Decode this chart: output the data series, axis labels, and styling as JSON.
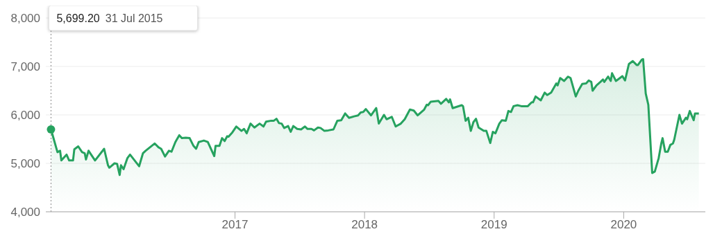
{
  "chart_data": {
    "type": "area",
    "color": "#26a25f",
    "x": [
      2015.58,
      2015.63,
      2015.65,
      2015.66,
      2015.7,
      2015.72,
      2015.75,
      2015.76,
      2015.79,
      2015.82,
      2015.84,
      2015.85,
      2015.87,
      2015.92,
      2015.99,
      2016.02,
      2016.03,
      2016.07,
      2016.09,
      2016.11,
      2016.12,
      2016.14,
      2016.17,
      2016.19,
      2016.26,
      2016.29,
      2016.31,
      2016.38,
      2016.41,
      2016.43,
      2016.46,
      2016.49,
      2016.51,
      2016.54,
      2016.57,
      2016.59,
      2016.62,
      2016.65,
      2016.68,
      2016.7,
      2016.72,
      2016.76,
      2016.79,
      2016.84,
      2016.85,
      2016.88,
      2016.9,
      2016.92,
      2016.94,
      2016.95,
      2016.98,
      2017.01,
      2017.05,
      2017.07,
      2017.09,
      2017.12,
      2017.15,
      2017.19,
      2017.22,
      2017.24,
      2017.28,
      2017.3,
      2017.32,
      2017.34,
      2017.36,
      2017.38,
      2017.41,
      2017.43,
      2017.45,
      2017.48,
      2017.51,
      2017.54,
      2017.56,
      2017.59,
      2017.61,
      2017.64,
      2017.66,
      2017.69,
      2017.72,
      2017.76,
      2017.79,
      2017.82,
      2017.85,
      2017.88,
      2017.92,
      2017.95,
      2017.97,
      2017.99,
      2018.01,
      2018.05,
      2018.09,
      2018.11,
      2018.15,
      2018.17,
      2018.21,
      2018.24,
      2018.28,
      2018.31,
      2018.35,
      2018.38,
      2018.41,
      2018.46,
      2018.48,
      2018.49,
      2018.51,
      2018.57,
      2018.59,
      2018.63,
      2018.65,
      2018.66,
      2018.68,
      2018.75,
      2018.76,
      2018.78,
      2018.8,
      2018.82,
      2018.84,
      2018.86,
      2018.88,
      2018.92,
      2018.94,
      2018.97,
      2018.99,
      2019.01,
      2019.04,
      2019.06,
      2019.09,
      2019.11,
      2019.13,
      2019.15,
      2019.18,
      2019.21,
      2019.23,
      2019.26,
      2019.29,
      2019.3,
      2019.32,
      2019.36,
      2019.39,
      2019.41,
      2019.44,
      2019.48,
      2019.49,
      2019.51,
      2019.54,
      2019.57,
      2019.59,
      2019.63,
      2019.65,
      2019.68,
      2019.71,
      2019.73,
      2019.75,
      2019.76,
      2019.79,
      2019.82,
      2019.84,
      2019.85,
      2019.88,
      2019.9,
      2019.91,
      2019.94,
      2019.96,
      2019.99,
      2020.01,
      2020.04,
      2020.07,
      2020.1,
      2020.11,
      2020.14,
      2020.15,
      2020.17,
      2020.19,
      2020.22,
      2020.24,
      2020.27,
      2020.29,
      2020.3,
      2020.32,
      2020.34,
      2020.36,
      2020.38,
      2020.39,
      2020.43,
      2020.45,
      2020.48,
      2020.49,
      2020.51,
      2020.54,
      2020.55,
      2020.58
    ],
    "values": [
      5700,
      5230,
      5260,
      5060,
      5180,
      5060,
      5060,
      5290,
      5350,
      5230,
      5210,
      5080,
      5260,
      5060,
      5300,
      4960,
      4910,
      5000,
      4990,
      4760,
      4960,
      4880,
      5110,
      5180,
      4940,
      5210,
      5260,
      5410,
      5330,
      5300,
      5140,
      5260,
      5240,
      5440,
      5580,
      5520,
      5530,
      5520,
      5360,
      5300,
      5440,
      5470,
      5440,
      5150,
      5360,
      5360,
      5520,
      5460,
      5560,
      5550,
      5640,
      5760,
      5670,
      5710,
      5620,
      5820,
      5740,
      5820,
      5760,
      5860,
      5880,
      5880,
      5920,
      5830,
      5820,
      5730,
      5770,
      5650,
      5770,
      5710,
      5700,
      5760,
      5710,
      5710,
      5680,
      5740,
      5730,
      5670,
      5680,
      5700,
      5880,
      5890,
      6030,
      5940,
      5970,
      5990,
      6050,
      6060,
      6120,
      5990,
      6140,
      5820,
      6000,
      5910,
      5960,
      5760,
      5820,
      5910,
      6110,
      6090,
      5990,
      6110,
      6210,
      6200,
      6270,
      6290,
      6230,
      6330,
      6260,
      6320,
      6140,
      6200,
      6180,
      5880,
      5940,
      5670,
      5850,
      5920,
      5740,
      5670,
      5670,
      5420,
      5650,
      5620,
      5820,
      5890,
      5880,
      6080,
      6060,
      6180,
      6200,
      6180,
      6180,
      6180,
      6260,
      6260,
      6380,
      6300,
      6460,
      6410,
      6460,
      6650,
      6610,
      6760,
      6700,
      6790,
      6760,
      6380,
      6500,
      6640,
      6650,
      6710,
      6680,
      6500,
      6610,
      6680,
      6730,
      6680,
      6790,
      6700,
      6860,
      6700,
      6740,
      6800,
      6710,
      7050,
      7110,
      7030,
      7030,
      7140,
      7150,
      6440,
      6210,
      4800,
      4830,
      5110,
      5410,
      5520,
      5240,
      5240,
      5380,
      5410,
      5490,
      6000,
      5820,
      5940,
      5910,
      6080,
      5890,
      6030,
      6030
    ],
    "xlim": [
      2015.54,
      2020.63
    ],
    "xticks": [
      2017,
      2018,
      2019,
      2020
    ],
    "ylim": [
      4000,
      8000
    ],
    "yticks": [
      {
        "value": 4000,
        "label": "4,000"
      },
      {
        "value": 5000,
        "label": "5,000"
      },
      {
        "value": 6000,
        "label": "6,000"
      },
      {
        "value": 7000,
        "label": "7,000"
      },
      {
        "value": 8000,
        "label": "8,000"
      }
    ],
    "grid": "y",
    "legend": false,
    "marker": "none",
    "line_style": "solid",
    "ref_lines": [
      {
        "axis": "x",
        "value": 2015.58,
        "color": "#888888",
        "line_style": "dotted"
      }
    ],
    "annotations": [
      "5,699.20  31 Jul 2015"
    ]
  }
}
